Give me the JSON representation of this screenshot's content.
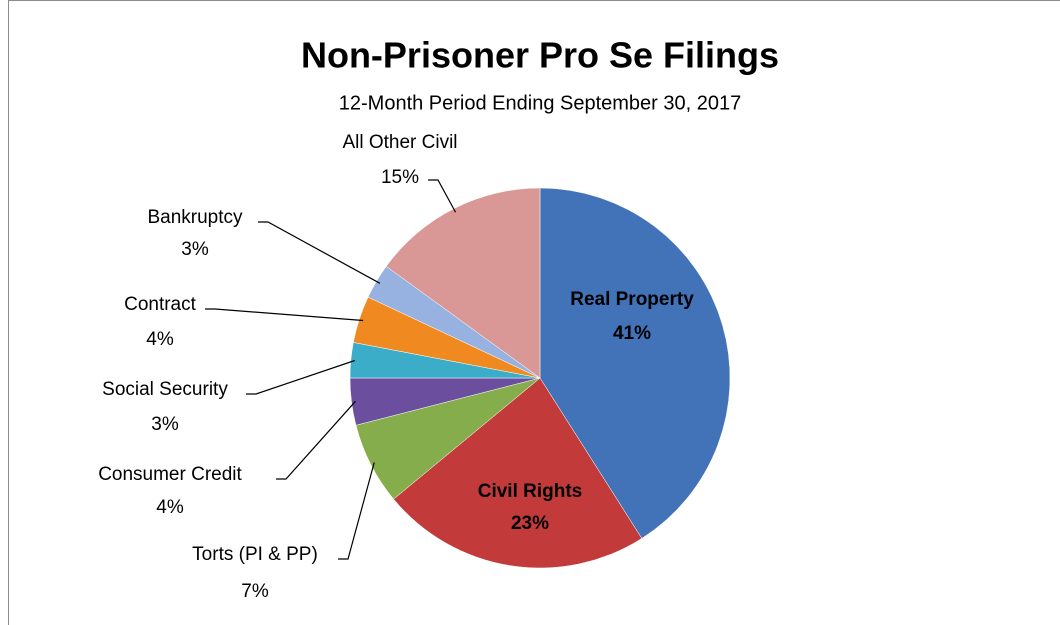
{
  "chart_data": {
    "type": "pie",
    "title": "Non-Prisoner Pro Se Filings",
    "subtitle": "12-Month Period Ending September 30, 2017",
    "categories": [
      "Real Property",
      "Civil Rights",
      "Torts (PI & PP)",
      "Consumer Credit",
      "Social Security",
      "Contract",
      "Bankruptcy",
      "All Other Civil"
    ],
    "values": [
      41,
      23,
      7,
      4,
      3,
      4,
      3,
      15
    ],
    "value_labels": [
      "41%",
      "23%",
      "7%",
      "4%",
      "3%",
      "4%",
      "3%",
      "15%"
    ],
    "colors": [
      "#4272b8",
      "#c23b3a",
      "#86ad4c",
      "#6b4f9e",
      "#3badc9",
      "#f0891f",
      "#97b2e0",
      "#d99795"
    ]
  }
}
